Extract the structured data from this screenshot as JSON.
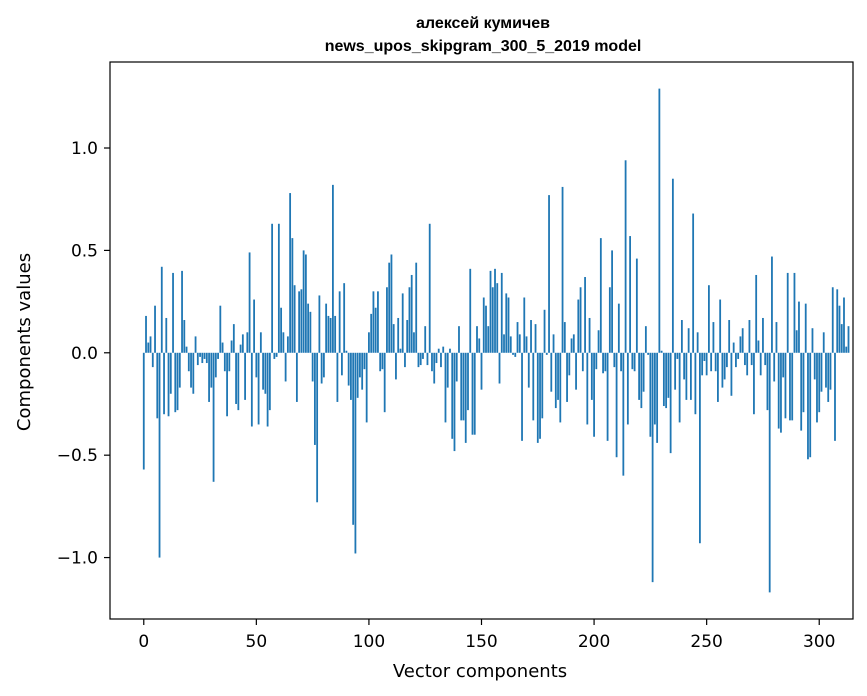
{
  "chart_data": {
    "type": "bar",
    "title": "алексей кумичев",
    "subtitle": "news_upos_skipgram_300_5_2019 model",
    "xlabel": "Vector components",
    "ylabel": "Components values",
    "xlim": [
      -15,
      315
    ],
    "ylim": [
      -1.3,
      1.42
    ],
    "xticks": [
      0,
      50,
      100,
      150,
      200,
      250,
      300
    ],
    "xtick_labels": [
      "0",
      "50",
      "100",
      "150",
      "200",
      "250",
      "300"
    ],
    "yticks": [
      -1.0,
      -0.5,
      0.0,
      0.5,
      1.0
    ],
    "ytick_labels": [
      "−1.0",
      "−0.5",
      "0.0",
      "0.5",
      "1.0"
    ],
    "grid": false,
    "bar_color": "#1f77b4",
    "series": [
      {
        "name": "components",
        "x_start": 0,
        "values": [
          -0.57,
          0.18,
          0.05,
          0.08,
          -0.07,
          0.23,
          -0.32,
          -1.0,
          0.42,
          -0.3,
          0.17,
          -0.31,
          -0.2,
          0.39,
          -0.29,
          -0.28,
          -0.17,
          0.4,
          0.16,
          0.03,
          -0.09,
          -0.17,
          -0.2,
          0.08,
          -0.06,
          -0.02,
          -0.05,
          -0.03,
          -0.05,
          -0.24,
          -0.17,
          -0.63,
          -0.12,
          -0.03,
          0.23,
          0.05,
          -0.09,
          -0.31,
          -0.09,
          0.06,
          0.14,
          -0.25,
          -0.28,
          0.04,
          0.09,
          -0.23,
          0.1,
          0.49,
          -0.36,
          0.26,
          -0.12,
          -0.35,
          0.1,
          -0.18,
          -0.2,
          -0.36,
          -0.28,
          0.63,
          -0.03,
          -0.02,
          0.63,
          0.22,
          0.1,
          -0.14,
          0.08,
          0.78,
          0.56,
          0.33,
          -0.24,
          0.3,
          0.31,
          0.5,
          0.48,
          0.24,
          0.2,
          -0.14,
          -0.45,
          -0.73,
          0.28,
          -0.15,
          -0.12,
          0.24,
          0.18,
          0.17,
          0.82,
          0.18,
          -0.24,
          0.3,
          -0.11,
          0.34,
          0.01,
          -0.16,
          -0.23,
          -0.84,
          -0.98,
          -0.22,
          -0.12,
          -0.18,
          -0.08,
          -0.34,
          0.1,
          0.19,
          0.3,
          0.22,
          0.3,
          -0.09,
          -0.08,
          -0.29,
          0.32,
          0.44,
          0.48,
          0.14,
          -0.13,
          0.17,
          0.02,
          0.29,
          -0.07,
          0.16,
          0.32,
          0.38,
          0.1,
          0.44,
          -0.07,
          -0.06,
          -0.03,
          0.13,
          -0.06,
          0.63,
          -0.09,
          -0.15,
          -0.05,
          0.02,
          -0.07,
          0.03,
          -0.34,
          -0.17,
          0.02,
          -0.42,
          -0.48,
          -0.14,
          0.13,
          -0.33,
          -0.33,
          -0.44,
          -0.28,
          0.41,
          -0.4,
          -0.4,
          0.13,
          0.07,
          -0.18,
          0.27,
          0.23,
          0.13,
          0.4,
          0.32,
          0.41,
          0.34,
          -0.15,
          0.39,
          0.09,
          0.29,
          0.27,
          0.08,
          -0.01,
          -0.02,
          0.15,
          0.09,
          -0.43,
          0.27,
          0.08,
          -0.17,
          0.16,
          -0.33,
          0.14,
          -0.44,
          -0.42,
          -0.32,
          0.21,
          -0.01,
          0.77,
          -0.19,
          0.09,
          -0.27,
          -0.23,
          -0.34,
          0.81,
          0.15,
          -0.24,
          -0.11,
          0.07,
          0.09,
          -0.18,
          0.26,
          0.32,
          -0.09,
          0.37,
          -0.35,
          0.17,
          -0.23,
          -0.41,
          -0.08,
          0.11,
          0.56,
          -0.1,
          -0.09,
          -0.43,
          0.32,
          0.5,
          -0.07,
          -0.51,
          0.24,
          -0.09,
          -0.6,
          0.94,
          -0.35,
          0.57,
          -0.08,
          -0.09,
          0.46,
          -0.23,
          -0.27,
          -0.19,
          0.13,
          -0.01,
          -0.41,
          -1.12,
          -0.35,
          -0.44,
          1.29,
          0.01,
          -0.26,
          -0.27,
          -0.22,
          -0.49,
          0.85,
          -0.18,
          -0.03,
          -0.34,
          0.16,
          -0.13,
          -0.23,
          0.12,
          -0.23,
          0.68,
          -0.3,
          0.1,
          -0.93,
          -0.11,
          -0.04,
          -0.11,
          0.33,
          -0.09,
          0.15,
          -0.09,
          -0.24,
          0.26,
          -0.17,
          -0.13,
          -0.07,
          0.16,
          -0.21,
          0.05,
          -0.07,
          -0.03,
          0.08,
          0.12,
          -0.06,
          -0.11,
          0.16,
          -0.06,
          -0.3,
          0.38,
          0.06,
          -0.11,
          0.17,
          -0.06,
          -0.28,
          -1.17,
          0.47,
          -0.14,
          0.15,
          -0.37,
          -0.39,
          -0.12,
          -0.32,
          0.39,
          -0.33,
          -0.33,
          0.39,
          0.11,
          0.25,
          -0.38,
          -0.29,
          0.24,
          -0.52,
          -0.51,
          0.12,
          -0.13,
          -0.34,
          -0.29,
          -0.19,
          0.1,
          -0.17,
          -0.24,
          -0.18,
          0.32,
          -0.43,
          0.31,
          0.23,
          0.14,
          0.27,
          0.03,
          0.13
        ]
      }
    ]
  }
}
